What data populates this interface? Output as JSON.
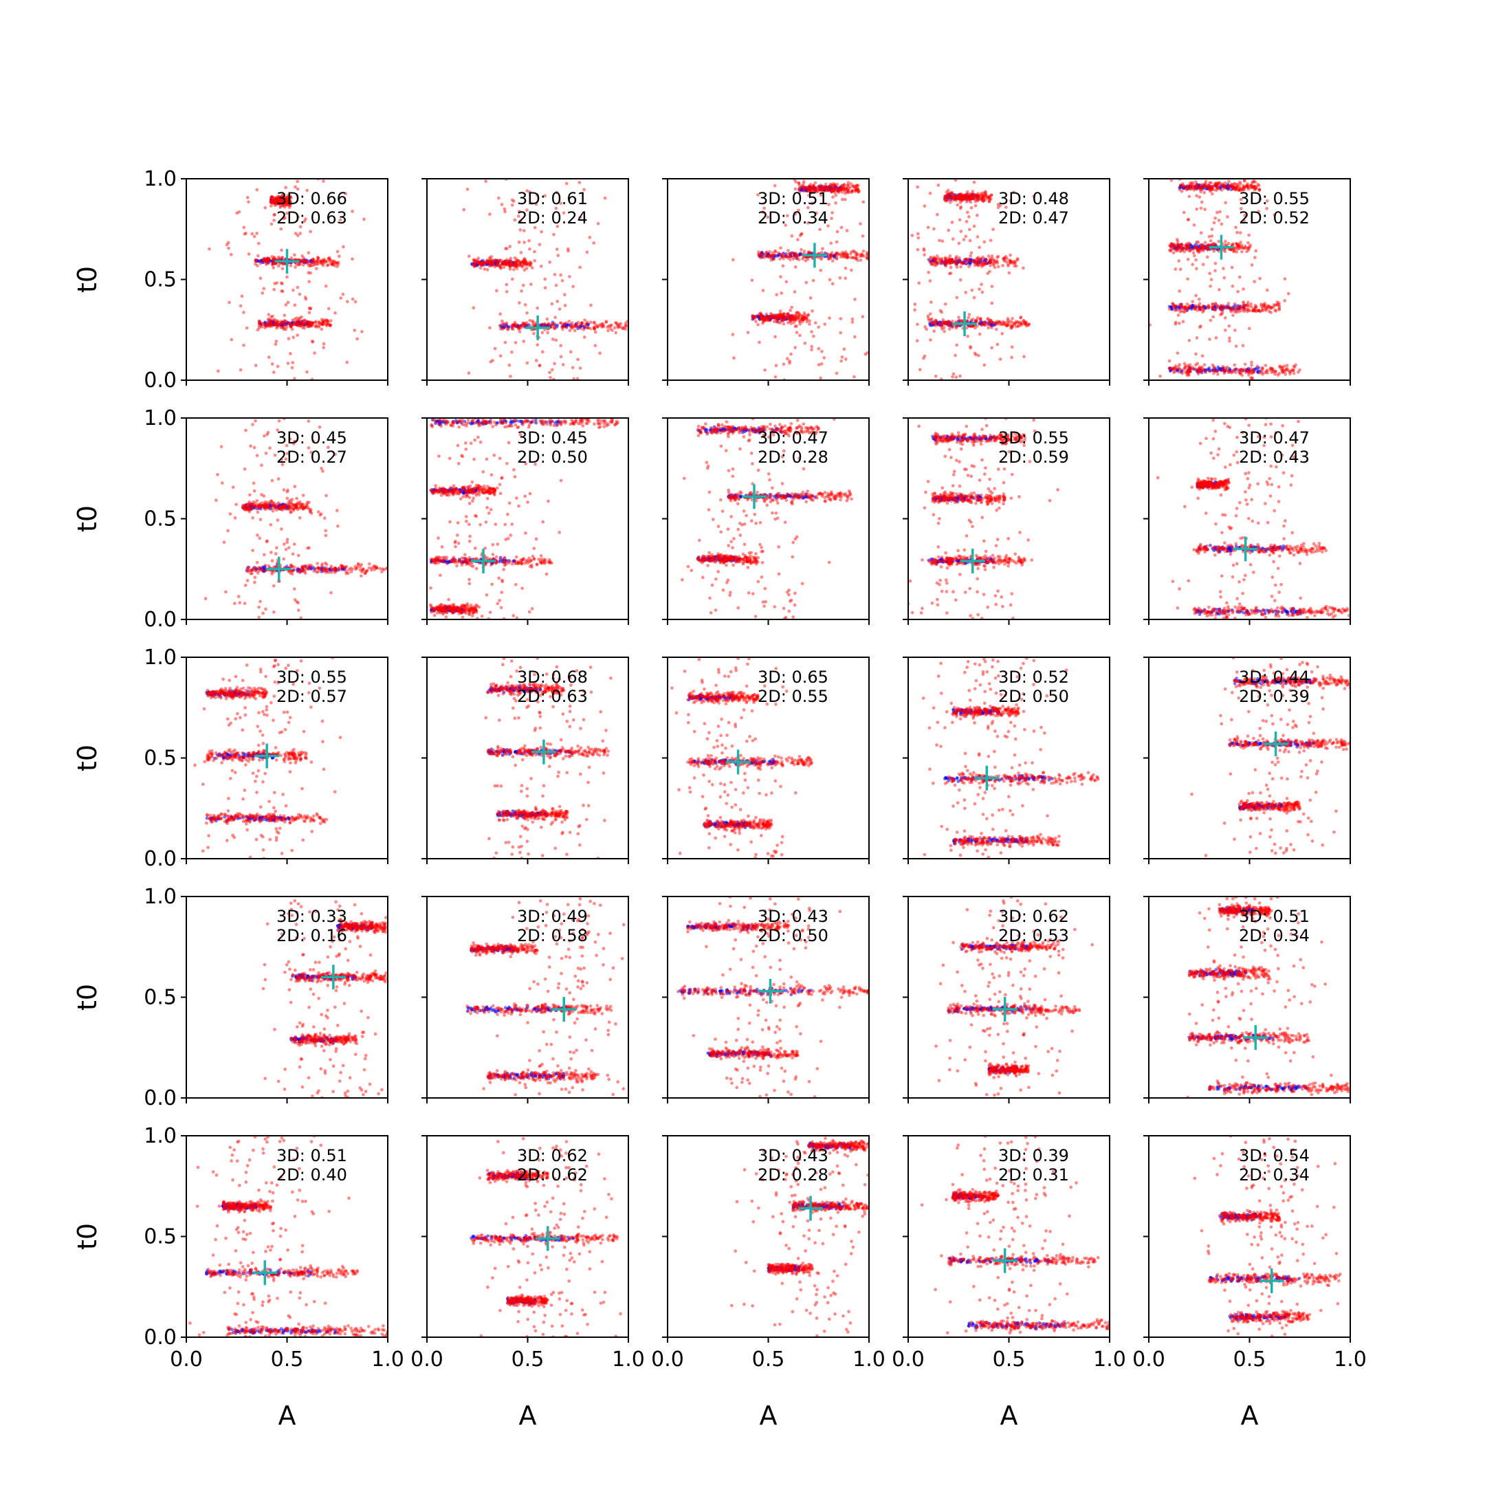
{
  "chart_data": {
    "type": "scatter",
    "layout": {
      "rows": 5,
      "cols": 5
    },
    "xlabel": "A",
    "ylabel": "t0",
    "xlim": [
      0.0,
      1.0
    ],
    "ylim": [
      0.0,
      1.0
    ],
    "xticks": [
      "0.0",
      "0.5",
      "1.0"
    ],
    "yticks": [
      "0.0",
      "0.5",
      "1.0"
    ],
    "grid": false,
    "colors": {
      "red_points": "#ff0000",
      "blue_points": "#0000ff",
      "marker": "#20b2aa"
    },
    "panels": [
      {
        "score_3d": "3D: 0.66",
        "score_2d": "2D: 0.63",
        "marker": [
          0.5,
          0.59
        ],
        "clusters": [
          {
            "y": 0.59,
            "xmin": 0.34,
            "xmax": 0.76
          },
          {
            "y": 0.28,
            "xmin": 0.36,
            "xmax": 0.72
          },
          {
            "y": 0.89,
            "xmin": 0.42,
            "xmax": 0.52
          }
        ]
      },
      {
        "score_3d": "3D: 0.61",
        "score_2d": "2D: 0.24",
        "marker": [
          0.55,
          0.26
        ],
        "clusters": [
          {
            "y": 0.58,
            "xmin": 0.22,
            "xmax": 0.52
          },
          {
            "y": 0.27,
            "xmin": 0.36,
            "xmax": 1.0
          }
        ]
      },
      {
        "score_3d": "3D: 0.51",
        "score_2d": "2D: 0.34",
        "marker": [
          0.73,
          0.62
        ],
        "clusters": [
          {
            "y": 0.62,
            "xmin": 0.45,
            "xmax": 1.0
          },
          {
            "y": 0.31,
            "xmin": 0.42,
            "xmax": 0.7
          },
          {
            "y": 0.95,
            "xmin": 0.65,
            "xmax": 0.95
          }
        ]
      },
      {
        "score_3d": "3D: 0.48",
        "score_2d": "2D: 0.47",
        "marker": [
          0.28,
          0.28
        ],
        "clusters": [
          {
            "y": 0.59,
            "xmin": 0.1,
            "xmax": 0.55
          },
          {
            "y": 0.28,
            "xmin": 0.1,
            "xmax": 0.6
          },
          {
            "y": 0.91,
            "xmin": 0.18,
            "xmax": 0.42
          }
        ]
      },
      {
        "score_3d": "3D: 0.55",
        "score_2d": "2D: 0.52",
        "marker": [
          0.36,
          0.66
        ],
        "clusters": [
          {
            "y": 0.66,
            "xmin": 0.1,
            "xmax": 0.5
          },
          {
            "y": 0.36,
            "xmin": 0.1,
            "xmax": 0.65
          },
          {
            "y": 0.96,
            "xmin": 0.15,
            "xmax": 0.55
          },
          {
            "y": 0.05,
            "xmin": 0.1,
            "xmax": 0.75
          }
        ]
      },
      {
        "score_3d": "3D: 0.45",
        "score_2d": "2D: 0.27",
        "marker": [
          0.46,
          0.25
        ],
        "clusters": [
          {
            "y": 0.56,
            "xmin": 0.28,
            "xmax": 0.62
          },
          {
            "y": 0.25,
            "xmin": 0.3,
            "xmax": 1.0
          }
        ]
      },
      {
        "score_3d": "3D: 0.45",
        "score_2d": "2D: 0.50",
        "marker": [
          0.28,
          0.29
        ],
        "clusters": [
          {
            "y": 0.29,
            "xmin": 0.02,
            "xmax": 0.62
          },
          {
            "y": 0.64,
            "xmin": 0.02,
            "xmax": 0.35
          },
          {
            "y": 0.98,
            "xmin": 0.02,
            "xmax": 0.95
          },
          {
            "y": 0.05,
            "xmin": 0.02,
            "xmax": 0.25
          }
        ]
      },
      {
        "score_3d": "3D: 0.47",
        "score_2d": "2D: 0.28",
        "marker": [
          0.43,
          0.61
        ],
        "clusters": [
          {
            "y": 0.61,
            "xmin": 0.3,
            "xmax": 0.92
          },
          {
            "y": 0.94,
            "xmin": 0.15,
            "xmax": 0.75
          },
          {
            "y": 0.3,
            "xmin": 0.15,
            "xmax": 0.45
          }
        ]
      },
      {
        "score_3d": "3D: 0.55",
        "score_2d": "2D: 0.59",
        "marker": [
          0.32,
          0.29
        ],
        "clusters": [
          {
            "y": 0.29,
            "xmin": 0.1,
            "xmax": 0.58
          },
          {
            "y": 0.6,
            "xmin": 0.12,
            "xmax": 0.48
          },
          {
            "y": 0.9,
            "xmin": 0.12,
            "xmax": 0.58
          }
        ]
      },
      {
        "score_3d": "3D: 0.47",
        "score_2d": "2D: 0.43",
        "marker": [
          0.48,
          0.35
        ],
        "clusters": [
          {
            "y": 0.35,
            "xmin": 0.22,
            "xmax": 0.88
          },
          {
            "y": 0.67,
            "xmin": 0.24,
            "xmax": 0.4
          },
          {
            "y": 0.04,
            "xmin": 0.22,
            "xmax": 1.0
          }
        ]
      },
      {
        "score_3d": "3D: 0.55",
        "score_2d": "2D: 0.57",
        "marker": [
          0.4,
          0.51
        ],
        "clusters": [
          {
            "y": 0.51,
            "xmin": 0.1,
            "xmax": 0.6
          },
          {
            "y": 0.2,
            "xmin": 0.1,
            "xmax": 0.7
          },
          {
            "y": 0.82,
            "xmin": 0.1,
            "xmax": 0.4
          }
        ]
      },
      {
        "score_3d": "3D: 0.68",
        "score_2d": "2D: 0.63",
        "marker": [
          0.58,
          0.53
        ],
        "clusters": [
          {
            "y": 0.53,
            "xmin": 0.3,
            "xmax": 0.9
          },
          {
            "y": 0.84,
            "xmin": 0.3,
            "xmax": 0.68
          },
          {
            "y": 0.22,
            "xmin": 0.35,
            "xmax": 0.7
          }
        ]
      },
      {
        "score_3d": "3D: 0.65",
        "score_2d": "2D: 0.55",
        "marker": [
          0.35,
          0.48
        ],
        "clusters": [
          {
            "y": 0.48,
            "xmin": 0.1,
            "xmax": 0.72
          },
          {
            "y": 0.8,
            "xmin": 0.1,
            "xmax": 0.45
          },
          {
            "y": 0.17,
            "xmin": 0.18,
            "xmax": 0.52
          }
        ]
      },
      {
        "score_3d": "3D: 0.52",
        "score_2d": "2D: 0.50",
        "marker": [
          0.39,
          0.4
        ],
        "clusters": [
          {
            "y": 0.4,
            "xmin": 0.18,
            "xmax": 0.95
          },
          {
            "y": 0.73,
            "xmin": 0.22,
            "xmax": 0.55
          },
          {
            "y": 0.09,
            "xmin": 0.22,
            "xmax": 0.75
          }
        ]
      },
      {
        "score_3d": "3D: 0.44",
        "score_2d": "2D: 0.39",
        "marker": [
          0.63,
          0.57
        ],
        "clusters": [
          {
            "y": 0.57,
            "xmin": 0.4,
            "xmax": 1.0
          },
          {
            "y": 0.88,
            "xmin": 0.42,
            "xmax": 1.0
          },
          {
            "y": 0.26,
            "xmin": 0.45,
            "xmax": 0.75
          }
        ]
      },
      {
        "score_3d": "3D: 0.33",
        "score_2d": "2D: 0.16",
        "marker": [
          0.73,
          0.6
        ],
        "clusters": [
          {
            "y": 0.6,
            "xmin": 0.52,
            "xmax": 1.0
          },
          {
            "y": 0.29,
            "xmin": 0.52,
            "xmax": 0.85
          },
          {
            "y": 0.85,
            "xmin": 0.75,
            "xmax": 1.0
          }
        ]
      },
      {
        "score_3d": "3D: 0.49",
        "score_2d": "2D: 0.58",
        "marker": [
          0.68,
          0.44
        ],
        "clusters": [
          {
            "y": 0.44,
            "xmin": 0.2,
            "xmax": 0.92
          },
          {
            "y": 0.74,
            "xmin": 0.22,
            "xmax": 0.55
          },
          {
            "y": 0.11,
            "xmin": 0.3,
            "xmax": 0.85
          }
        ]
      },
      {
        "score_3d": "3D: 0.43",
        "score_2d": "2D: 0.50",
        "marker": [
          0.51,
          0.53
        ],
        "clusters": [
          {
            "y": 0.53,
            "xmin": 0.05,
            "xmax": 1.0
          },
          {
            "y": 0.22,
            "xmin": 0.2,
            "xmax": 0.65
          },
          {
            "y": 0.85,
            "xmin": 0.1,
            "xmax": 0.6
          }
        ]
      },
      {
        "score_3d": "3D: 0.62",
        "score_2d": "2D: 0.53",
        "marker": [
          0.48,
          0.44
        ],
        "clusters": [
          {
            "y": 0.44,
            "xmin": 0.2,
            "xmax": 0.85
          },
          {
            "y": 0.75,
            "xmin": 0.26,
            "xmax": 0.75
          },
          {
            "y": 0.14,
            "xmin": 0.4,
            "xmax": 0.6
          }
        ]
      },
      {
        "score_3d": "3D: 0.51",
        "score_2d": "2D: 0.34",
        "marker": [
          0.53,
          0.3
        ],
        "clusters": [
          {
            "y": 0.3,
            "xmin": 0.2,
            "xmax": 0.8
          },
          {
            "y": 0.62,
            "xmin": 0.2,
            "xmax": 0.6
          },
          {
            "y": 0.05,
            "xmin": 0.3,
            "xmax": 1.0
          },
          {
            "y": 0.93,
            "xmin": 0.35,
            "xmax": 0.6
          }
        ]
      },
      {
        "score_3d": "3D: 0.51",
        "score_2d": "2D: 0.40",
        "marker": [
          0.39,
          0.32
        ],
        "clusters": [
          {
            "y": 0.32,
            "xmin": 0.1,
            "xmax": 0.85
          },
          {
            "y": 0.65,
            "xmin": 0.18,
            "xmax": 0.42
          },
          {
            "y": 0.03,
            "xmin": 0.2,
            "xmax": 1.0
          }
        ]
      },
      {
        "score_3d": "3D: 0.62",
        "score_2d": "2D: 0.62",
        "marker": [
          0.6,
          0.49
        ],
        "clusters": [
          {
            "y": 0.49,
            "xmin": 0.22,
            "xmax": 0.95
          },
          {
            "y": 0.8,
            "xmin": 0.3,
            "xmax": 0.6
          },
          {
            "y": 0.18,
            "xmin": 0.4,
            "xmax": 0.6
          }
        ]
      },
      {
        "score_3d": "3D: 0.43",
        "score_2d": "2D: 0.28",
        "marker": [
          0.71,
          0.64
        ],
        "clusters": [
          {
            "y": 0.65,
            "xmin": 0.62,
            "xmax": 1.0
          },
          {
            "y": 0.95,
            "xmin": 0.7,
            "xmax": 1.0
          },
          {
            "y": 0.34,
            "xmin": 0.5,
            "xmax": 0.72
          }
        ]
      },
      {
        "score_3d": "3D: 0.39",
        "score_2d": "2D: 0.31",
        "marker": [
          0.48,
          0.38
        ],
        "clusters": [
          {
            "y": 0.38,
            "xmin": 0.2,
            "xmax": 0.95
          },
          {
            "y": 0.7,
            "xmin": 0.22,
            "xmax": 0.45
          },
          {
            "y": 0.06,
            "xmin": 0.3,
            "xmax": 1.0
          }
        ]
      },
      {
        "score_3d": "3D: 0.54",
        "score_2d": "2D: 0.34",
        "marker": [
          0.61,
          0.28
        ],
        "clusters": [
          {
            "y": 0.29,
            "xmin": 0.3,
            "xmax": 0.95
          },
          {
            "y": 0.6,
            "xmin": 0.35,
            "xmax": 0.65
          },
          {
            "y": 0.1,
            "xmin": 0.4,
            "xmax": 0.8
          }
        ]
      }
    ]
  }
}
